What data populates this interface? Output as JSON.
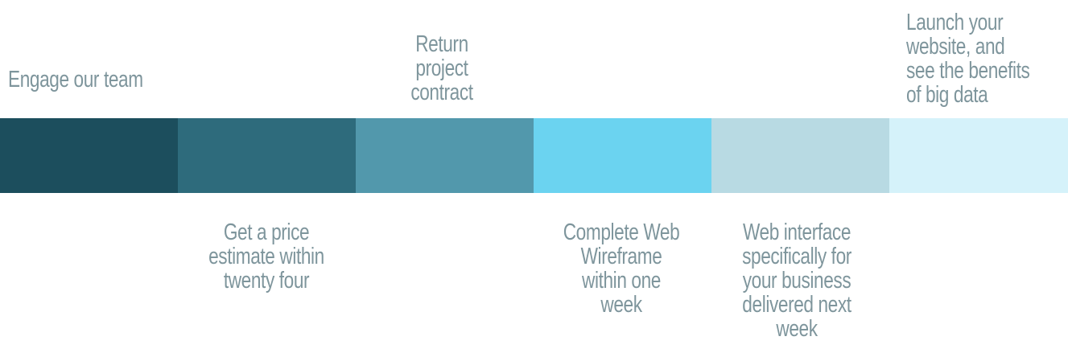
{
  "steps": [
    {
      "label": "Engage our team",
      "color": "#1c4e5d",
      "position": "above"
    },
    {
      "label": "Get a price\nestimate within\ntwenty four",
      "color": "#2e6b7c",
      "position": "below"
    },
    {
      "label": "Return\nproject\ncontract",
      "color": "#5298ac",
      "position": "above"
    },
    {
      "label": "Complete Web\nWireframe\nwithin one\nweek",
      "color": "#6bd3f0",
      "position": "below"
    },
    {
      "label": "Web interface\nspecifically for\nyour business\ndelivered next\nweek",
      "color": "#b8dae3",
      "position": "below"
    },
    {
      "label": "Launch your\nwebsite, and\nsee the benefits\nof big data",
      "color": "#d5f2fa",
      "position": "above"
    }
  ],
  "colors": {
    "label_text": "#7e959c",
    "background": "#ffffff"
  }
}
